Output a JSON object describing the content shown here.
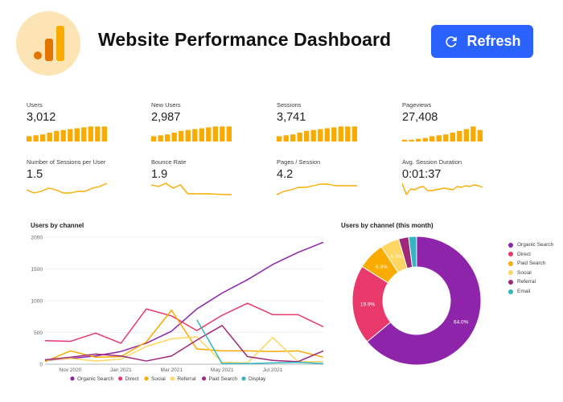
{
  "header": {
    "title": "Website Performance Dashboard",
    "refresh_label": "Refresh",
    "logo_icon": "analytics-logo-icon",
    "refresh_icon": "refresh-icon",
    "accent": "#2962ff",
    "kpi_color": "#f9ab00"
  },
  "kpis": [
    {
      "label": "Users",
      "value": "3,012",
      "kind": "bars",
      "trend": [
        3,
        3.5,
        4,
        5,
        6,
        6.5,
        7,
        7.5,
        8,
        8.5,
        8.5,
        8.5
      ]
    },
    {
      "label": "New Users",
      "value": "2,987",
      "kind": "bars",
      "trend": [
        3,
        3.5,
        4,
        5,
        6,
        6.5,
        7,
        7.5,
        8,
        8.5,
        8.5,
        8.5
      ]
    },
    {
      "label": "Sessions",
      "value": "3,741",
      "kind": "bars",
      "trend": [
        3,
        3.5,
        4,
        5,
        6,
        6.5,
        7,
        7.5,
        8,
        8.5,
        8.5,
        8.5
      ]
    },
    {
      "label": "Pageviews",
      "value": "27,408",
      "kind": "bars",
      "trend": [
        1,
        1,
        1.5,
        2,
        3,
        3.5,
        4,
        5,
        6,
        7,
        8.5,
        6.5
      ]
    },
    {
      "label": "Number of Sessions per User",
      "value": "1.5",
      "kind": "line",
      "trend": [
        5,
        3,
        4,
        6,
        5,
        3,
        3,
        4,
        4,
        6,
        7,
        9
      ]
    },
    {
      "label": "Bounce Rate",
      "value": "1.9",
      "kind": "line",
      "trend": [
        8,
        7,
        9,
        6,
        8,
        2.5,
        2.5,
        2.5,
        2.5,
        2.2,
        2,
        2
      ]
    },
    {
      "label": "Pages / Session",
      "value": "4.2",
      "kind": "line",
      "trend": [
        2,
        4,
        5,
        6.5,
        6.5,
        7.5,
        8.5,
        8.5,
        7.5,
        7.5,
        7.5,
        7.5
      ]
    },
    {
      "label": "Avg. Session Duration",
      "value": "0:01:37",
      "kind": "line",
      "trend": [
        9,
        2,
        5.5,
        5,
        6.5,
        7,
        4.5,
        4.5,
        5,
        5.5,
        6,
        5.5,
        5,
        7,
        6.5,
        7.5,
        7,
        8,
        7.5,
        6.5
      ]
    }
  ],
  "chart_data": [
    {
      "type": "line",
      "title": "Users by channel",
      "xlabel": "",
      "ylabel": "",
      "ylim": [
        0,
        2000
      ],
      "yticks": [
        "0",
        "500",
        "1000",
        "1500",
        "2000"
      ],
      "x_labels": [
        "Nov 2020",
        "Jan 2021",
        "Mar 2021",
        "May 2021",
        "Jul 2021"
      ],
      "x_label_index": [
        1,
        3,
        5,
        7,
        9
      ],
      "grid": true,
      "legend_position": "bottom",
      "series": [
        {
          "name": "Organic Search",
          "color": "#8e24aa",
          "values": [
            60,
            90,
            130,
            200,
            330,
            520,
            870,
            1120,
            1330,
            1570,
            1760,
            1920
          ]
        },
        {
          "name": "Direct",
          "color": "#e8396a",
          "values": [
            370,
            360,
            490,
            330,
            870,
            760,
            530,
            770,
            960,
            780,
            780,
            590
          ]
        },
        {
          "name": "Social",
          "color": "#f9ab00",
          "values": [
            40,
            210,
            110,
            120,
            350,
            850,
            240,
            210,
            210,
            200,
            210,
            110
          ]
        },
        {
          "name": "Referral",
          "color": "#fdd663",
          "values": [
            70,
            90,
            50,
            80,
            280,
            400,
            430,
            30,
            20,
            420,
            40,
            40
          ]
        },
        {
          "name": "Paid Search",
          "color": "#a0287a",
          "values": [
            70,
            110,
            160,
            130,
            50,
            130,
            380,
            610,
            120,
            60,
            40,
            210
          ]
        },
        {
          "name": "Display",
          "color": "#33b5c3",
          "values": [
            null,
            null,
            null,
            null,
            null,
            null,
            700,
            10,
            10,
            20,
            30,
            10
          ]
        }
      ]
    },
    {
      "type": "pie",
      "title": "Users by channel (this month)",
      "legend_position": "right",
      "slices": [
        {
          "name": "Organic Search",
          "value": 64.0,
          "label": "64.0%",
          "color": "#8e24aa"
        },
        {
          "name": "Direct",
          "value": 19.9,
          "label": "19.9%",
          "color": "#e8396a"
        },
        {
          "name": "Paid Search",
          "value": 6.9,
          "label": "6.9%",
          "color": "#f9ab00"
        },
        {
          "name": "Social",
          "value": 4.7,
          "label": "4.7%",
          "color": "#fdd663"
        },
        {
          "name": "Referral",
          "value": 2.5,
          "label": "",
          "color": "#a0287a"
        },
        {
          "name": "Email",
          "value": 2.0,
          "label": "",
          "color": "#33b5c3"
        }
      ]
    }
  ]
}
